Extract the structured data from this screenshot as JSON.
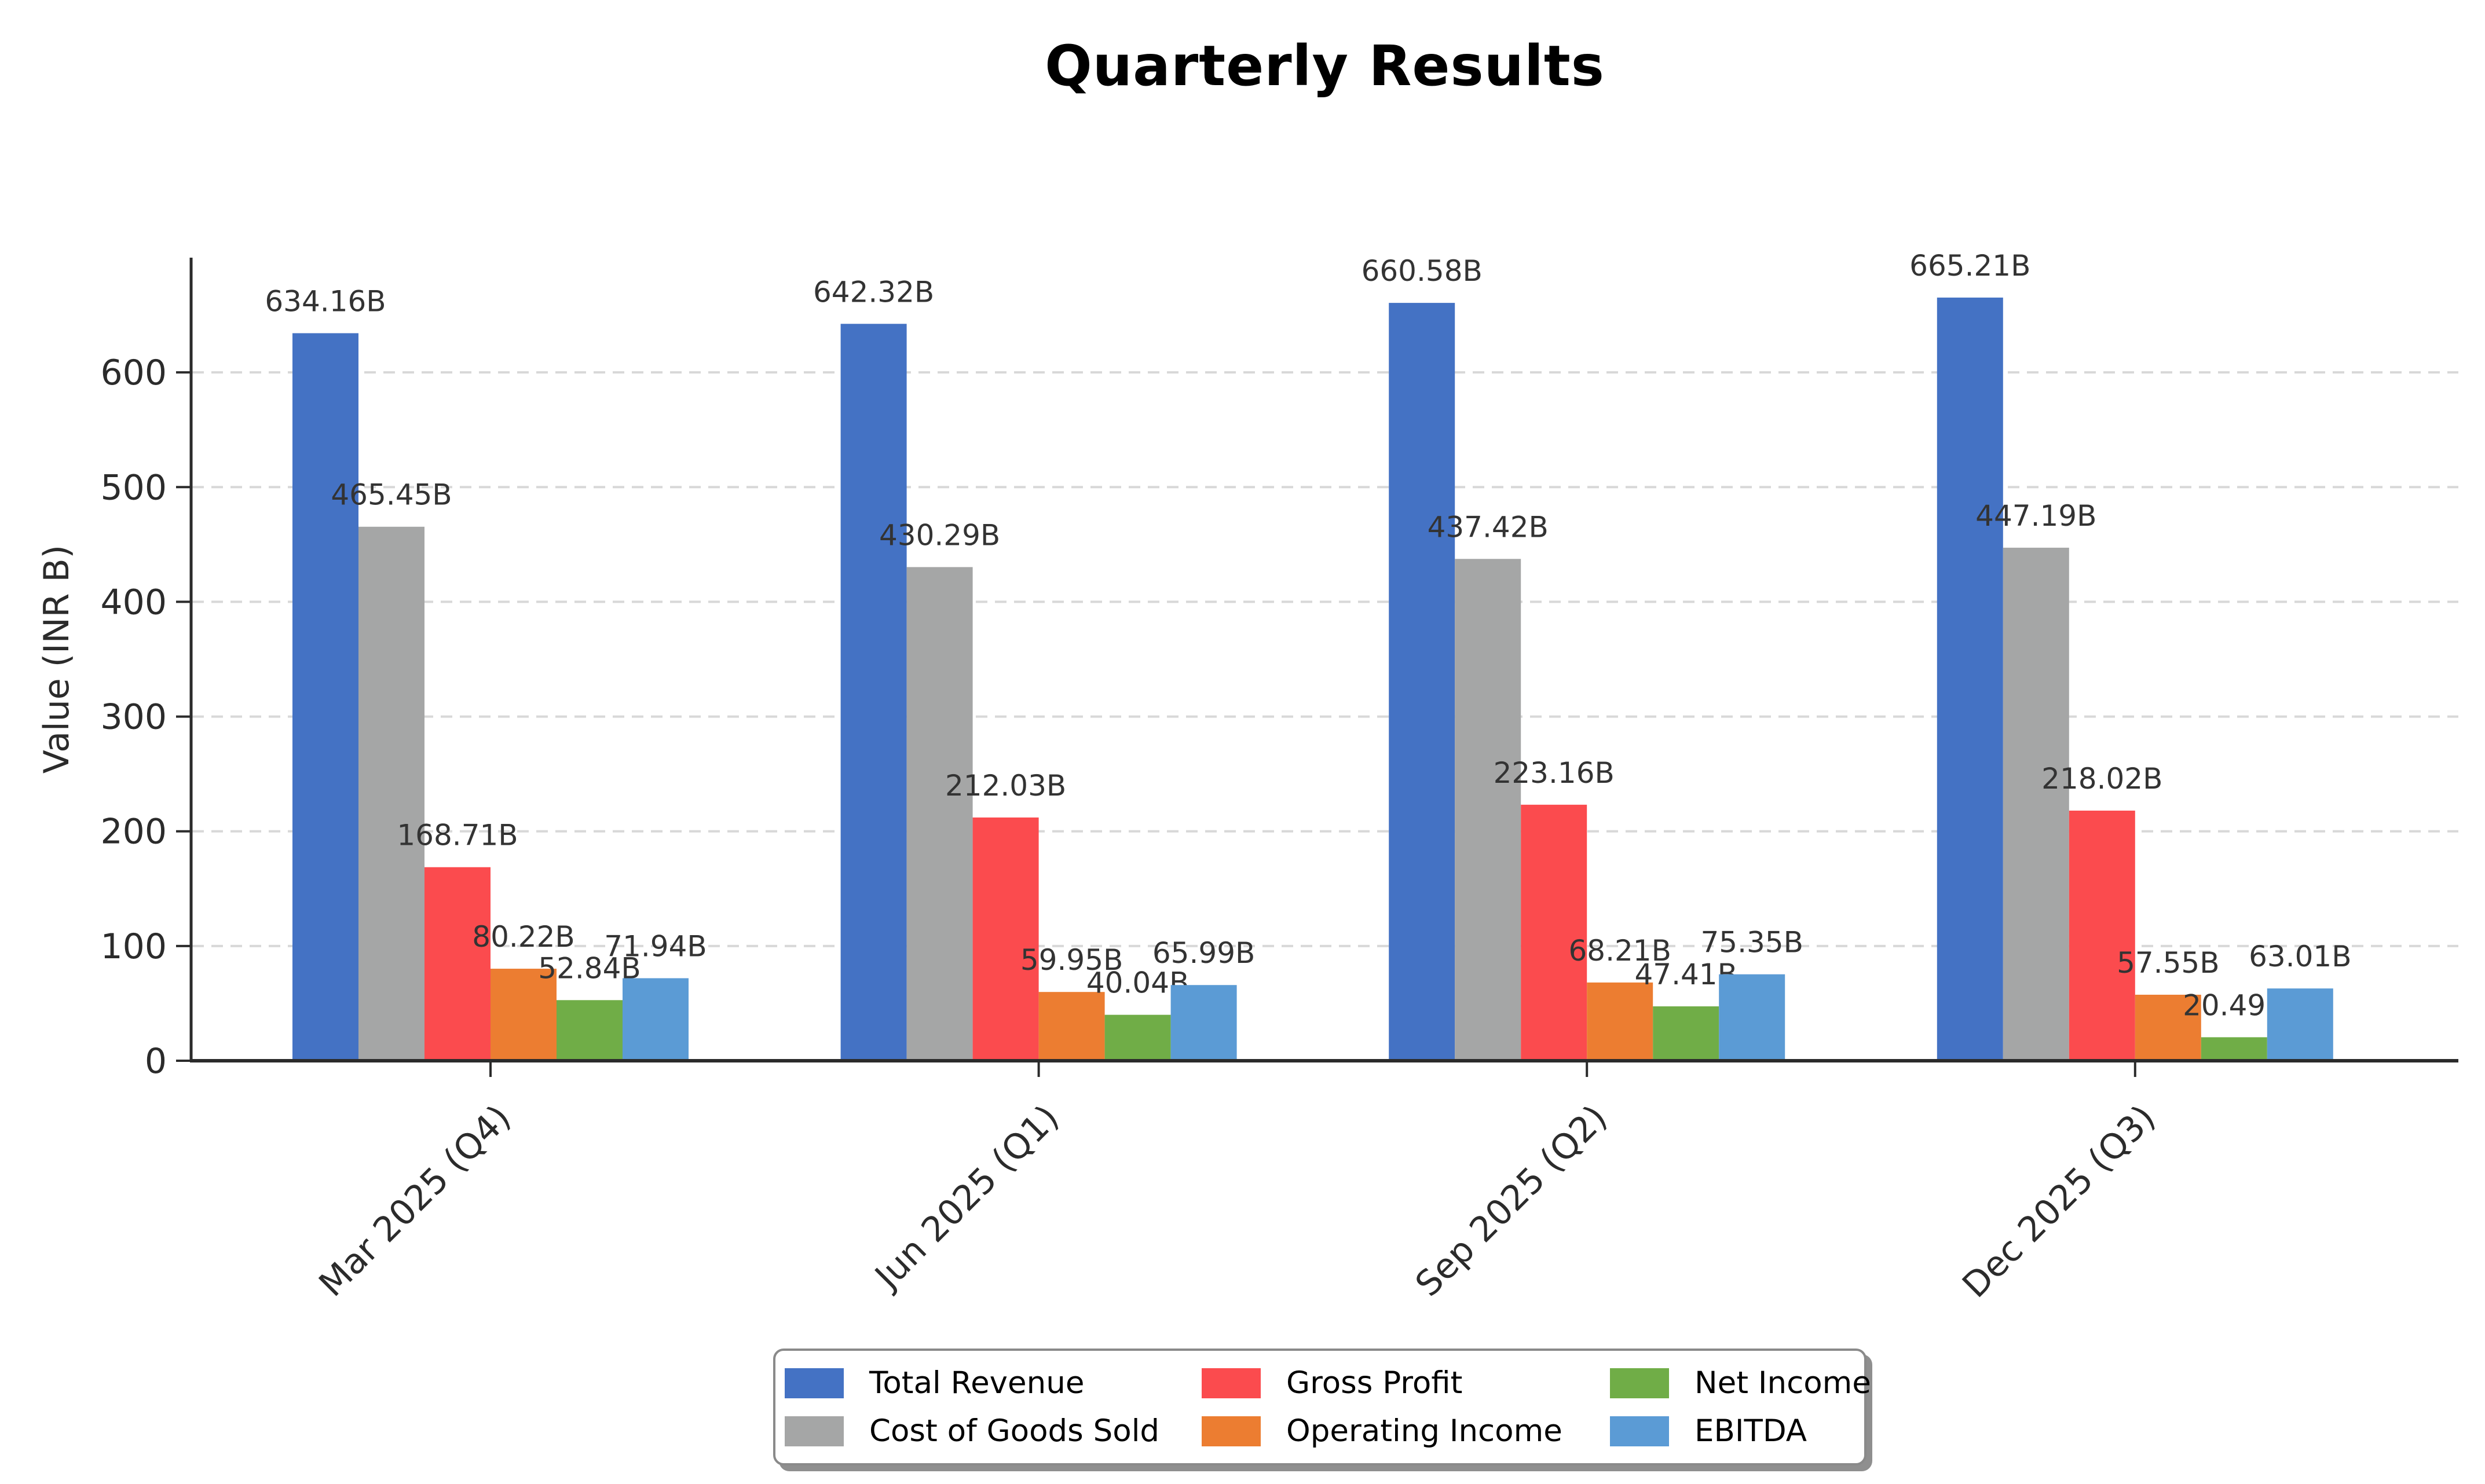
{
  "chart_data": {
    "type": "bar",
    "title": "Quarterly Results",
    "xlabel": "",
    "ylabel": "Value (INR B)",
    "categories": [
      "Mar 2025 (Q4)",
      "Jun 2025 (Q1)",
      "Sep 2025 (Q2)",
      "Dec 2025 (Q3)"
    ],
    "series": [
      {
        "name": "Total Revenue",
        "color": "#4472C4",
        "values": [
          634.16,
          642.32,
          660.58,
          665.21
        ]
      },
      {
        "name": "Cost of Goods Sold",
        "color": "#A5A6A6",
        "values": [
          465.45,
          430.29,
          437.42,
          447.19
        ]
      },
      {
        "name": "Gross Profit",
        "color": "#FB4B4E",
        "values": [
          168.71,
          212.03,
          223.16,
          218.02
        ]
      },
      {
        "name": "Operating Income",
        "color": "#EC7D31",
        "values": [
          80.22,
          59.95,
          68.21,
          57.55
        ]
      },
      {
        "name": "Net Income",
        "color": "#70AD47",
        "values": [
          52.84,
          40.04,
          47.41,
          20.49
        ]
      },
      {
        "name": "EBITDA",
        "color": "#5B9BD5",
        "values": [
          71.94,
          65.99,
          75.35,
          63.01
        ]
      }
    ],
    "value_label_suffix": "B",
    "value_label_decimals": 2,
    "yticks": [
      0,
      100,
      200,
      300,
      400,
      500,
      600
    ],
    "ylim": [
      0,
      700
    ],
    "grid": "horizontal-dashed",
    "legend_position": "bottom-center",
    "legend_columns": 3,
    "colors": {
      "axis": "#2b2b2b",
      "grid": "#d8d8d8",
      "tick_text": "#2b2b2b",
      "value_text": "#333333",
      "background": "#ffffff"
    }
  }
}
